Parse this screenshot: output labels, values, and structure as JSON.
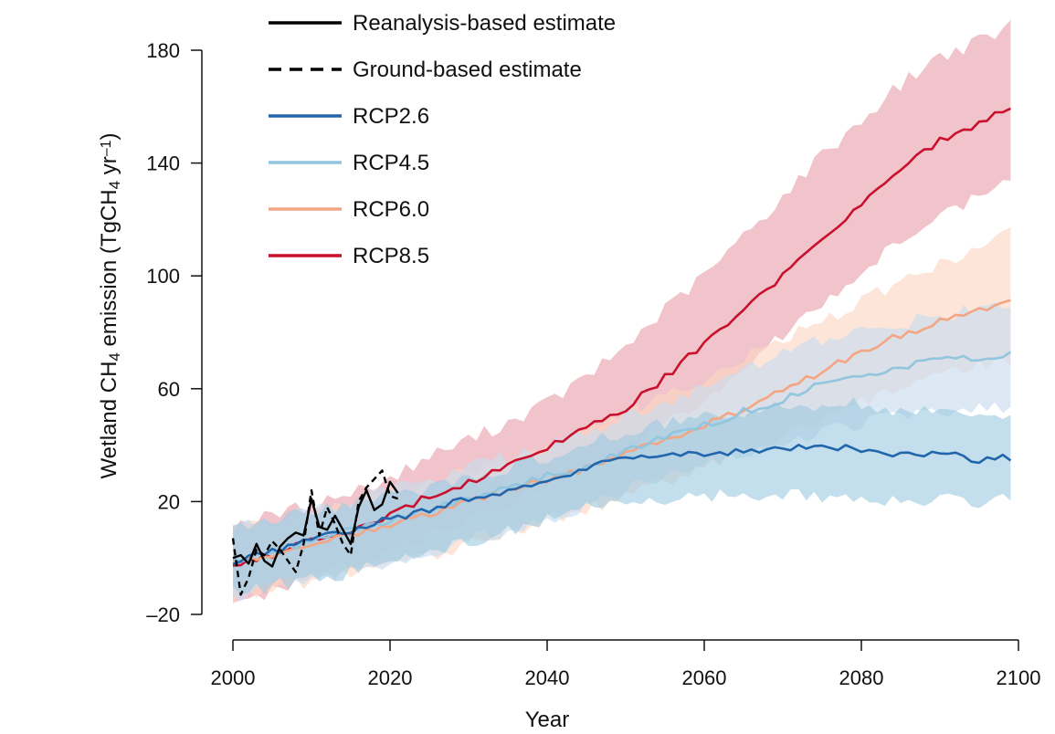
{
  "chart_data": {
    "type": "line",
    "xlabel": "Year",
    "ylabel": {
      "parts": [
        "Wetland CH",
        "4",
        " emission (TgCH",
        "4",
        " yr",
        "–1",
        ")"
      ]
    },
    "xlim": [
      2000,
      2100
    ],
    "ylim": [
      -20,
      180
    ],
    "xticks": [
      2000,
      2020,
      2040,
      2060,
      2080,
      2100
    ],
    "yticks": [
      -20,
      20,
      60,
      100,
      140,
      180
    ],
    "ytick_labels": [
      "–20",
      "20",
      "60",
      "100",
      "140",
      "180"
    ],
    "grid": false,
    "legend_position": "top-left",
    "legend": [
      {
        "label": "Reanalysis-based estimate",
        "color": "#000000",
        "style": "solid"
      },
      {
        "label": "Ground-based estimate",
        "color": "#000000",
        "style": "dashed"
      },
      {
        "label": "RCP2.6",
        "color": "#2166ac",
        "style": "solid"
      },
      {
        "label": "RCP4.5",
        "color": "#92c5de",
        "style": "solid"
      },
      {
        "label": "RCP6.0",
        "color": "#f4a582",
        "style": "solid"
      },
      {
        "label": "RCP8.5",
        "color": "#c9102c",
        "style": "solid"
      }
    ],
    "observed": [
      {
        "name": "Reanalysis-based estimate",
        "color": "#000000",
        "dash": false,
        "x": [
          2000,
          2001,
          2002,
          2003,
          2004,
          2005,
          2006,
          2007,
          2008,
          2009,
          2010,
          2011,
          2012,
          2013,
          2014,
          2015,
          2016,
          2017,
          2018,
          2019,
          2020,
          2021
        ],
        "y": [
          0,
          1,
          -2,
          5,
          -1,
          -3,
          4,
          7,
          9,
          8,
          21,
          11,
          10,
          15,
          10,
          5,
          18,
          24,
          17,
          19,
          27,
          23
        ]
      },
      {
        "name": "Ground-based estimate",
        "color": "#000000",
        "dash": true,
        "x": [
          2000,
          2001,
          2002,
          2003,
          2004,
          2005,
          2006,
          2007,
          2008,
          2009,
          2010,
          2011,
          2012,
          2013,
          2014,
          2015,
          2016,
          2017,
          2018,
          2019,
          2020,
          2021
        ],
        "y": [
          7,
          -13,
          -7,
          3,
          1,
          6,
          3,
          -1,
          -5,
          5,
          24,
          8,
          18,
          12,
          5,
          1,
          20,
          25,
          28,
          31,
          22,
          21
        ]
      }
    ],
    "scenarios": [
      {
        "name": "RCP2.6",
        "color": "#2166ac",
        "band_color": "#9ecae1",
        "x": [
          2000,
          2005,
          2010,
          2015,
          2020,
          2025,
          2030,
          2035,
          2040,
          2045,
          2050,
          2055,
          2060,
          2065,
          2070,
          2075,
          2080,
          2085,
          2090,
          2095,
          2100
        ],
        "mean": [
          -1,
          2,
          7,
          10,
          14,
          17,
          21,
          24,
          28,
          32,
          35,
          36,
          37,
          38,
          38,
          40,
          38,
          37,
          37,
          35,
          36
        ],
        "low": [
          -12,
          -10,
          -8,
          -5,
          -2,
          2,
          6,
          10,
          14,
          17,
          20,
          21,
          22,
          22,
          22,
          22,
          21,
          21,
          21,
          20,
          22
        ],
        "high": [
          11,
          13,
          17,
          19,
          22,
          25,
          28,
          32,
          35,
          40,
          45,
          48,
          51,
          52,
          53,
          55,
          55,
          52,
          52,
          51,
          51
        ]
      },
      {
        "name": "RCP4.5",
        "color": "#92c5de",
        "band_color": "#c6dbef",
        "x": [
          2000,
          2005,
          2010,
          2015,
          2020,
          2025,
          2030,
          2035,
          2040,
          2045,
          2050,
          2055,
          2060,
          2065,
          2070,
          2075,
          2080,
          2085,
          2090,
          2095,
          2100
        ],
        "mean": [
          -1,
          2,
          6,
          10,
          13,
          17,
          21,
          25,
          29,
          32,
          38,
          43,
          47,
          52,
          56,
          62,
          64,
          68,
          70,
          71,
          73
        ],
        "low": [
          -14,
          -10,
          -7,
          -4,
          -1,
          2,
          6,
          10,
          14,
          18,
          24,
          29,
          33,
          37,
          41,
          45,
          47,
          51,
          52,
          53,
          53
        ],
        "high": [
          11,
          13,
          17,
          20,
          24,
          28,
          32,
          36,
          40,
          44,
          50,
          55,
          60,
          66,
          72,
          77,
          80,
          83,
          86,
          88,
          90
        ]
      },
      {
        "name": "RCP6.0",
        "color": "#f4a582",
        "band_color": "#fcd5c1",
        "x": [
          2000,
          2005,
          2010,
          2015,
          2020,
          2025,
          2030,
          2035,
          2040,
          2045,
          2050,
          2055,
          2060,
          2065,
          2070,
          2075,
          2080,
          2085,
          2090,
          2095,
          2100
        ],
        "mean": [
          -1,
          1,
          5,
          8,
          12,
          16,
          20,
          24,
          28,
          32,
          37,
          42,
          47,
          53,
          60,
          66,
          73,
          79,
          84,
          88,
          93
        ],
        "low": [
          -14,
          -11,
          -8,
          -5,
          -2,
          1,
          5,
          9,
          13,
          17,
          22,
          27,
          32,
          37,
          43,
          49,
          55,
          60,
          64,
          68,
          70
        ],
        "high": [
          11,
          13,
          16,
          19,
          23,
          27,
          31,
          35,
          40,
          45,
          52,
          58,
          64,
          70,
          78,
          84,
          91,
          98,
          104,
          110,
          117
        ]
      },
      {
        "name": "RCP8.5",
        "color": "#c9102c",
        "band_color": "#e8a0ab",
        "x": [
          2000,
          2005,
          2010,
          2015,
          2020,
          2025,
          2030,
          2035,
          2040,
          2045,
          2050,
          2055,
          2060,
          2065,
          2070,
          2075,
          2080,
          2085,
          2090,
          2095,
          2100
        ],
        "mean": [
          -2,
          1,
          6,
          9,
          15,
          22,
          27,
          33,
          39,
          46,
          53,
          64,
          76,
          88,
          100,
          112,
          126,
          138,
          148,
          154,
          162
        ],
        "low": [
          -16,
          -12,
          -7,
          -3,
          2,
          8,
          13,
          19,
          25,
          31,
          38,
          47,
          57,
          68,
          79,
          90,
          102,
          112,
          122,
          128,
          134
        ],
        "high": [
          12,
          15,
          19,
          23,
          28,
          36,
          42,
          48,
          55,
          64,
          75,
          88,
          100,
          114,
          128,
          143,
          155,
          168,
          178,
          183,
          190
        ]
      }
    ]
  }
}
